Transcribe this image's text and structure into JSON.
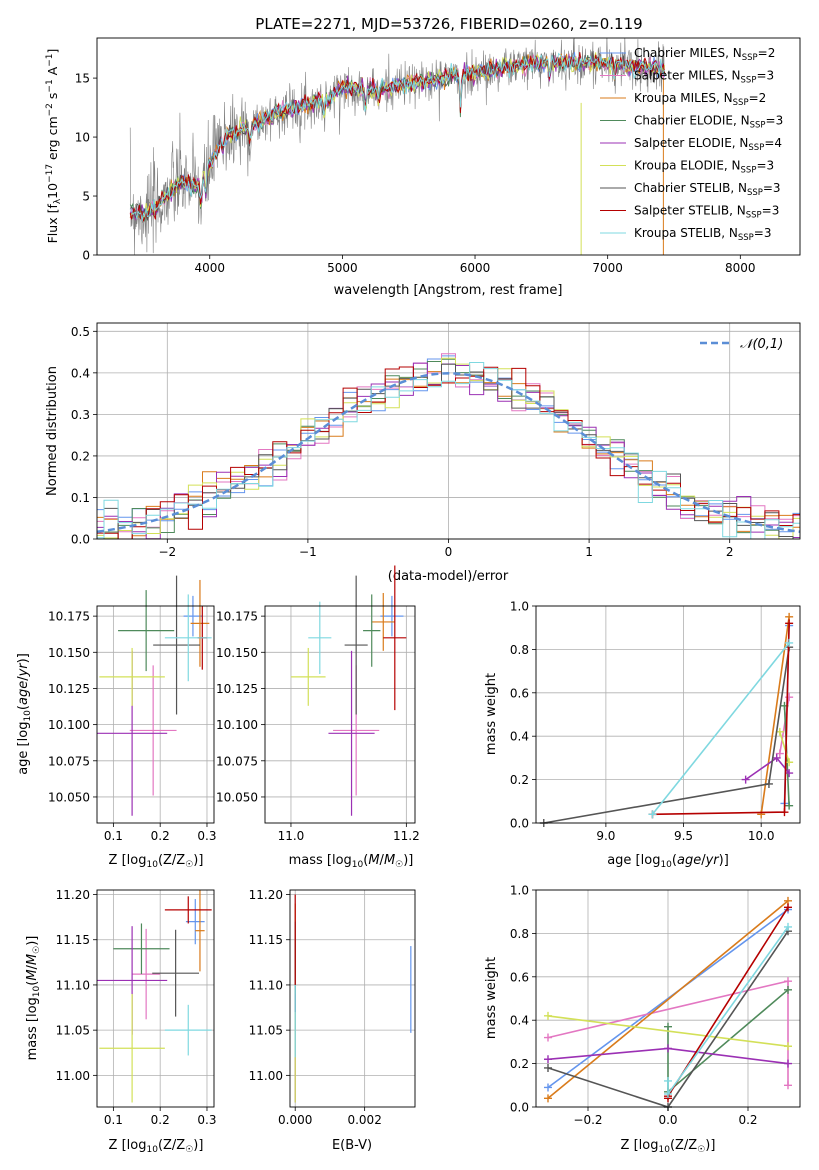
{
  "figure_title": "PLATE=2271, MJD=53726, FIBERID=0260, z=0.119",
  "series_colors": [
    "#6495ed",
    "#e377c2",
    "#d97b1b",
    "#4f8a5b",
    "#9b30b4",
    "#d3e058",
    "#555555",
    "#b50000",
    "#7fd8e0"
  ],
  "chart_data": [
    {
      "id": "spectrum",
      "type": "line",
      "xlabel": "wavelength [Angstrom, rest frame]",
      "ylabel": "Flux [f_λ 10^-17 erg cm^-2 s^-1 A^-1]",
      "xlim": [
        3150,
        8450
      ],
      "ylim": [
        0,
        18.4
      ],
      "xticks": [
        4000,
        5000,
        6000,
        7000,
        8000
      ],
      "yticks": [
        0,
        5,
        10,
        15
      ],
      "legend_position": "upper right",
      "observed_color": "#808080",
      "series": [
        {
          "name": "Chabrier MILES, N_SSP=2"
        },
        {
          "name": "Salpeter MILES, N_SSP=3"
        },
        {
          "name": "Kroupa MILES, N_SSP=2"
        },
        {
          "name": "Chabrier ELODIE, N_SSP=3"
        },
        {
          "name": "Salpeter ELODIE, N_SSP=4"
        },
        {
          "name": "Kroupa ELODIE, N_SSP=3"
        },
        {
          "name": "Chabrier STELIB, N_SSP=3"
        },
        {
          "name": "Salpeter STELIB, N_SSP=3"
        },
        {
          "name": "Kroupa STELIB, N_SSP=3"
        }
      ],
      "continuum": {
        "x": [
          3400,
          3500,
          3600,
          3700,
          3800,
          3900,
          4000,
          4100,
          4200,
          4300,
          4500,
          4700,
          4900,
          5000,
          5200,
          5400,
          5600,
          5800,
          6000,
          6200,
          6400,
          6600,
          6800,
          7000,
          7200,
          7300,
          7400
        ],
        "y": [
          3.8,
          3.5,
          4.0,
          5.5,
          6.3,
          5.8,
          7.5,
          10.0,
          10.5,
          10.8,
          12.0,
          12.7,
          13.2,
          14.3,
          14.0,
          14.3,
          14.6,
          15.2,
          15.4,
          15.8,
          16.2,
          16.3,
          16.3,
          16.3,
          16.0,
          15.9,
          15.7
        ]
      }
    },
    {
      "id": "residual_histogram",
      "type": "line",
      "xlabel": "(data-model)/error",
      "ylabel": "Normed distribution",
      "xlim": [
        -2.5,
        2.5
      ],
      "ylim": [
        0,
        0.52
      ],
      "xticks": [
        -2,
        -1,
        0,
        1,
        2
      ],
      "yticks": [
        0.0,
        0.1,
        0.2,
        0.3,
        0.4,
        0.5
      ],
      "reference_curve": "𝒩(0,1)",
      "reference_color": "#5b8ed6",
      "bin_width": 0.1,
      "legend_position": "upper right"
    },
    {
      "id": "age_vs_Z",
      "type": "scatter",
      "xlabel": "Z [log10(Z/Z☉)]",
      "ylabel": "age [log10(age/yr)]",
      "xlim": [
        0.065,
        0.315
      ],
      "ylim": [
        10.032,
        10.182
      ],
      "xticks": [
        0.1,
        0.2,
        0.3
      ],
      "yticks": [
        10.05,
        10.075,
        10.1,
        10.125,
        10.15,
        10.175
      ],
      "points": [
        {
          "x": 0.27,
          "y": 10.175,
          "xerr": 0.02,
          "yerr": 0.014
        },
        {
          "x": 0.185,
          "y": 10.096,
          "xerr": 0.05,
          "yerr": 0.045
        },
        {
          "x": 0.285,
          "y": 10.17,
          "xerr": 0.02,
          "yerr": 0.03
        },
        {
          "x": 0.17,
          "y": 10.165,
          "xerr": 0.06,
          "yerr": 0.028
        },
        {
          "x": 0.14,
          "y": 10.094,
          "xerr": 0.075,
          "yerr": 0.057
        },
        {
          "x": 0.14,
          "y": 10.133,
          "xerr": 0.07,
          "yerr": 0.02
        },
        {
          "x": 0.235,
          "y": 10.155,
          "xerr": 0.05,
          "yerr": 0.048
        },
        {
          "x": 0.29,
          "y": 10.16,
          "xerr": 0.01,
          "yerr": 0.022
        },
        {
          "x": 0.26,
          "y": 10.16,
          "xerr": 0.05,
          "yerr": 0.03
        }
      ]
    },
    {
      "id": "age_vs_mass",
      "type": "scatter",
      "xlabel": "mass [log10(M/M☉)]",
      "ylabel": "",
      "xlim": [
        10.955,
        11.215
      ],
      "ylim": [
        10.032,
        10.182
      ],
      "xticks": [
        11.0,
        11.2
      ],
      "yticks": [
        10.05,
        10.075,
        10.1,
        10.125,
        10.15,
        10.175
      ],
      "points": [
        {
          "x": 11.175,
          "y": 10.175,
          "xerr": 0.02,
          "yerr": 0.014
        },
        {
          "x": 11.113,
          "y": 10.096,
          "xerr": 0.04,
          "yerr": 0.045
        },
        {
          "x": 11.16,
          "y": 10.171,
          "xerr": 0.02,
          "yerr": 0.02
        },
        {
          "x": 11.14,
          "y": 10.165,
          "xerr": 0.015,
          "yerr": 0.025
        },
        {
          "x": 11.105,
          "y": 10.094,
          "xerr": 0.04,
          "yerr": 0.057
        },
        {
          "x": 11.03,
          "y": 10.133,
          "xerr": 0.03,
          "yerr": 0.02
        },
        {
          "x": 11.113,
          "y": 10.155,
          "xerr": 0.02,
          "yerr": 0.048
        },
        {
          "x": 11.18,
          "y": 10.16,
          "xerr": 0.02,
          "yerr": 0.05
        },
        {
          "x": 11.05,
          "y": 10.16,
          "xerr": 0.02,
          "yerr": 0.025
        }
      ]
    },
    {
      "id": "mass_weight_vs_age",
      "type": "line",
      "xlabel": "age [log10(age/yr)]",
      "ylabel": "mass weight",
      "xlim": [
        8.55,
        10.25
      ],
      "ylim": [
        0,
        1.0
      ],
      "xticks": [
        9.0,
        9.5,
        10.0
      ],
      "yticks": [
        0.0,
        0.2,
        0.4,
        0.6,
        0.8,
        1.0
      ],
      "series": [
        {
          "x": [
            10.15,
            10.18
          ],
          "y": [
            0.09,
            0.91
          ]
        },
        {
          "x": [
            10.12,
            10.18
          ],
          "y": [
            0.32,
            0.58
          ]
        },
        {
          "x": [
            10.0,
            10.18
          ],
          "y": [
            0.04,
            0.95
          ]
        },
        {
          "x": [
            10.15,
            10.18
          ],
          "y": [
            0.54,
            0.08
          ]
        },
        {
          "x": [
            9.9,
            10.1,
            10.18
          ],
          "y": [
            0.2,
            0.3,
            0.23
          ]
        },
        {
          "x": [
            10.12,
            10.18
          ],
          "y": [
            0.42,
            0.28
          ]
        },
        {
          "x": [
            8.6,
            10.05,
            10.18
          ],
          "y": [
            0.0,
            0.18,
            0.81
          ]
        },
        {
          "x": [
            9.3,
            10.15,
            10.18
          ],
          "y": [
            0.04,
            0.05,
            0.92
          ]
        },
        {
          "x": [
            9.3,
            10.18
          ],
          "y": [
            0.04,
            0.83
          ]
        }
      ]
    },
    {
      "id": "mass_vs_Z",
      "type": "scatter",
      "xlabel": "Z [log10(Z/Z☉)]",
      "ylabel": "mass [log10(M/M☉)]",
      "xlim": [
        0.065,
        0.315
      ],
      "ylim": [
        10.965,
        11.205
      ],
      "xticks": [
        0.1,
        0.2,
        0.3
      ],
      "yticks": [
        11.0,
        11.05,
        11.1,
        11.15,
        11.2
      ],
      "points": [
        {
          "x": 0.275,
          "y": 11.17,
          "xerr": 0.02,
          "yerr": 0.025
        },
        {
          "x": 0.17,
          "y": 11.112,
          "xerr": 0.03,
          "yerr": 0.05
        },
        {
          "x": 0.285,
          "y": 11.16,
          "xerr": 0.01,
          "yerr": 0.045
        },
        {
          "x": 0.16,
          "y": 11.14,
          "xerr": 0.06,
          "yerr": 0.028
        },
        {
          "x": 0.14,
          "y": 11.105,
          "xerr": 0.075,
          "yerr": 0.06
        },
        {
          "x": 0.14,
          "y": 11.03,
          "xerr": 0.07,
          "yerr": 0.06
        },
        {
          "x": 0.233,
          "y": 11.113,
          "xerr": 0.05,
          "yerr": 0.048
        },
        {
          "x": 0.26,
          "y": 11.183,
          "xerr": 0.05,
          "yerr": 0.015
        },
        {
          "x": 0.26,
          "y": 11.05,
          "xerr": 0.05,
          "yerr": 0.028
        }
      ]
    },
    {
      "id": "mass_vs_EBV",
      "type": "scatter",
      "xlabel": "E(B-V)",
      "ylabel": "",
      "xlim": [
        -0.00015,
        0.00345
      ],
      "ylim": [
        10.965,
        11.205
      ],
      "xticks": [
        0.0,
        0.002
      ],
      "yticks": [
        11.0,
        11.05,
        11.1,
        11.15,
        11.2
      ],
      "points": [
        {
          "x": 0.00333,
          "y": 11.095,
          "xerr": 0.0,
          "yerr": 0.048
        },
        {
          "x": 0.0,
          "y": 11.1,
          "xerr": 0.0,
          "yerr": 0.05
        },
        {
          "x": 0.0,
          "y": 11.15,
          "xerr": 0.0,
          "yerr": 0.04
        },
        {
          "x": 0.0,
          "y": 11.1,
          "xerr": 0.0,
          "yerr": 0.05
        },
        {
          "x": 0.0,
          "y": 11.03,
          "xerr": 0.0,
          "yerr": 0.06
        },
        {
          "x": 0.0,
          "y": 11.02,
          "xerr": 0.0,
          "yerr": 0.05
        },
        {
          "x": 0.0,
          "y": 11.12,
          "xerr": 0.0,
          "yerr": 0.05
        },
        {
          "x": 0.0,
          "y": 11.15,
          "xerr": 0.0,
          "yerr": 0.05
        },
        {
          "x": 0.0,
          "y": 11.06,
          "xerr": 0.0,
          "yerr": 0.04
        }
      ]
    },
    {
      "id": "mass_weight_vs_Z",
      "type": "line",
      "xlabel": "Z [log10(Z/Z☉)]",
      "ylabel": "mass weight",
      "xlim": [
        -0.33,
        0.33
      ],
      "ylim": [
        0,
        1.0
      ],
      "xticks": [
        -0.2,
        0.0,
        0.2
      ],
      "yticks": [
        0.0,
        0.2,
        0.4,
        0.6,
        0.8,
        1.0
      ],
      "series": [
        {
          "x": [
            -0.3,
            0.3
          ],
          "y": [
            0.09,
            0.91
          ]
        },
        {
          "x": [
            -0.3,
            0.3,
            0.3
          ],
          "y": [
            0.32,
            0.58,
            0.1
          ]
        },
        {
          "x": [
            -0.3,
            0.3
          ],
          "y": [
            0.04,
            0.95
          ]
        },
        {
          "x": [
            0.0,
            0.0,
            0.3
          ],
          "y": [
            0.37,
            0.07,
            0.54
          ]
        },
        {
          "x": [
            -0.3,
            0.0,
            0.3
          ],
          "y": [
            0.22,
            0.27,
            0.2
          ]
        },
        {
          "x": [
            -0.3,
            0.3
          ],
          "y": [
            0.42,
            0.28
          ]
        },
        {
          "x": [
            -0.3,
            0.0,
            0.3
          ],
          "y": [
            0.18,
            0.0,
            0.81
          ]
        },
        {
          "x": [
            0.0,
            0.0,
            0.3
          ],
          "y": [
            0.04,
            0.05,
            0.92
          ]
        },
        {
          "x": [
            0.0,
            0.0,
            0.3
          ],
          "y": [
            0.12,
            0.06,
            0.83
          ]
        }
      ]
    }
  ]
}
